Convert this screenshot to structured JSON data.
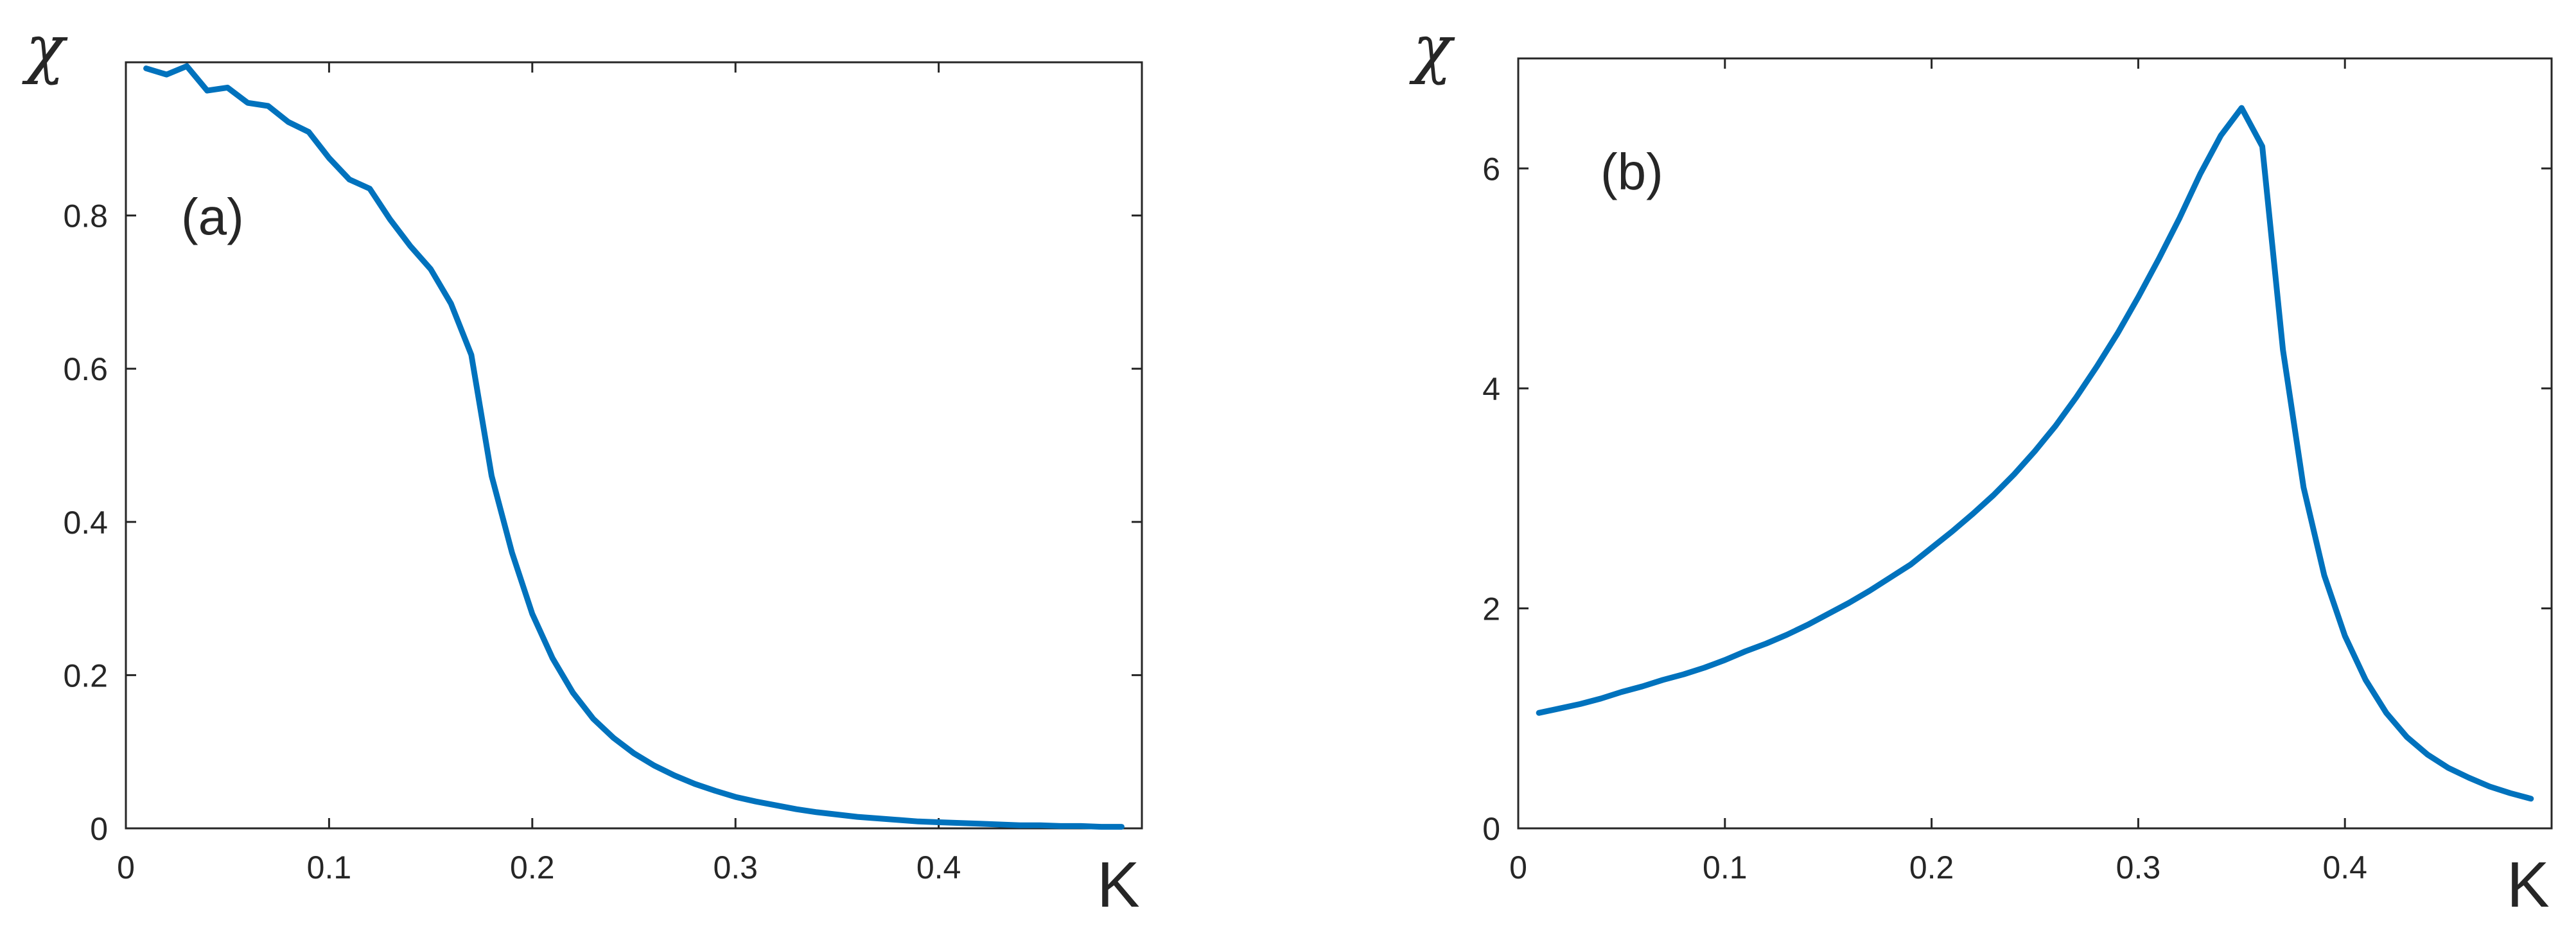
{
  "colors": {
    "series": "#0072BD",
    "axes": "#262626",
    "background": "#FFFFFF"
  },
  "chart_data": [
    {
      "type": "line",
      "panel_label": "(a)",
      "xlabel": "K",
      "ylabel": "χ",
      "xlim": [
        0,
        0.5
      ],
      "ylim": [
        0,
        1
      ],
      "xticks": [
        0,
        0.1,
        0.2,
        0.3,
        0.4
      ],
      "xtick_labels": [
        "0",
        "0.1",
        "0.2",
        "0.3",
        "0.4"
      ],
      "yticks": [
        0,
        0.2,
        0.4,
        0.6,
        0.8
      ],
      "ytick_labels": [
        "0",
        "0.2",
        "0.4",
        "0.6",
        "0.8"
      ],
      "grid": false,
      "series": [
        {
          "x": [
            0.01,
            0.02,
            0.03,
            0.04,
            0.05,
            0.06,
            0.07,
            0.08,
            0.09,
            0.1,
            0.11,
            0.12,
            0.13,
            0.14,
            0.15,
            0.16,
            0.17,
            0.18,
            0.19,
            0.2,
            0.21,
            0.22,
            0.23,
            0.24,
            0.25,
            0.26,
            0.27,
            0.28,
            0.29,
            0.3,
            0.31,
            0.32,
            0.33,
            0.34,
            0.35,
            0.36,
            0.37,
            0.38,
            0.39,
            0.4,
            0.41,
            0.42,
            0.43,
            0.44,
            0.45,
            0.46,
            0.47,
            0.48,
            0.49
          ],
          "values": [
            0.992,
            0.984,
            0.995,
            0.963,
            0.967,
            0.947,
            0.943,
            0.922,
            0.909,
            0.875,
            0.847,
            0.835,
            0.795,
            0.76,
            0.73,
            0.685,
            0.618,
            0.46,
            0.36,
            0.28,
            0.222,
            0.177,
            0.143,
            0.118,
            0.098,
            0.082,
            0.069,
            0.058,
            0.049,
            0.041,
            0.035,
            0.03,
            0.025,
            0.021,
            0.018,
            0.015,
            0.013,
            0.011,
            0.009,
            0.008,
            0.007,
            0.006,
            0.005,
            0.004,
            0.004,
            0.003,
            0.003,
            0.002,
            0.002
          ]
        }
      ]
    },
    {
      "type": "line",
      "panel_label": "(b)",
      "xlabel": "K",
      "ylabel": "χ",
      "xlim": [
        0,
        0.5
      ],
      "ylim": [
        0,
        7
      ],
      "xticks": [
        0,
        0.1,
        0.2,
        0.3,
        0.4
      ],
      "xtick_labels": [
        "0",
        "0.1",
        "0.2",
        "0.3",
        "0.4"
      ],
      "yticks": [
        0,
        2,
        4,
        6
      ],
      "ytick_labels": [
        "0",
        "2",
        "4",
        "6"
      ],
      "grid": false,
      "series": [
        {
          "x": [
            0.01,
            0.02,
            0.03,
            0.04,
            0.05,
            0.06,
            0.07,
            0.08,
            0.09,
            0.1,
            0.11,
            0.12,
            0.13,
            0.14,
            0.15,
            0.16,
            0.17,
            0.18,
            0.19,
            0.2,
            0.21,
            0.22,
            0.23,
            0.24,
            0.25,
            0.26,
            0.27,
            0.28,
            0.29,
            0.3,
            0.31,
            0.32,
            0.33,
            0.34,
            0.35,
            0.36,
            0.37,
            0.38,
            0.39,
            0.4,
            0.41,
            0.42,
            0.43,
            0.44,
            0.45,
            0.46,
            0.47,
            0.48,
            0.49
          ],
          "values": [
            1.05,
            1.09,
            1.13,
            1.18,
            1.24,
            1.29,
            1.35,
            1.4,
            1.46,
            1.53,
            1.61,
            1.68,
            1.76,
            1.85,
            1.95,
            2.05,
            2.16,
            2.28,
            2.4,
            2.55,
            2.7,
            2.86,
            3.03,
            3.22,
            3.43,
            3.66,
            3.92,
            4.2,
            4.5,
            4.83,
            5.18,
            5.55,
            5.95,
            6.3,
            6.55,
            6.2,
            4.35,
            3.1,
            2.3,
            1.75,
            1.35,
            1.05,
            0.83,
            0.67,
            0.55,
            0.46,
            0.38,
            0.32,
            0.27
          ]
        }
      ]
    }
  ]
}
